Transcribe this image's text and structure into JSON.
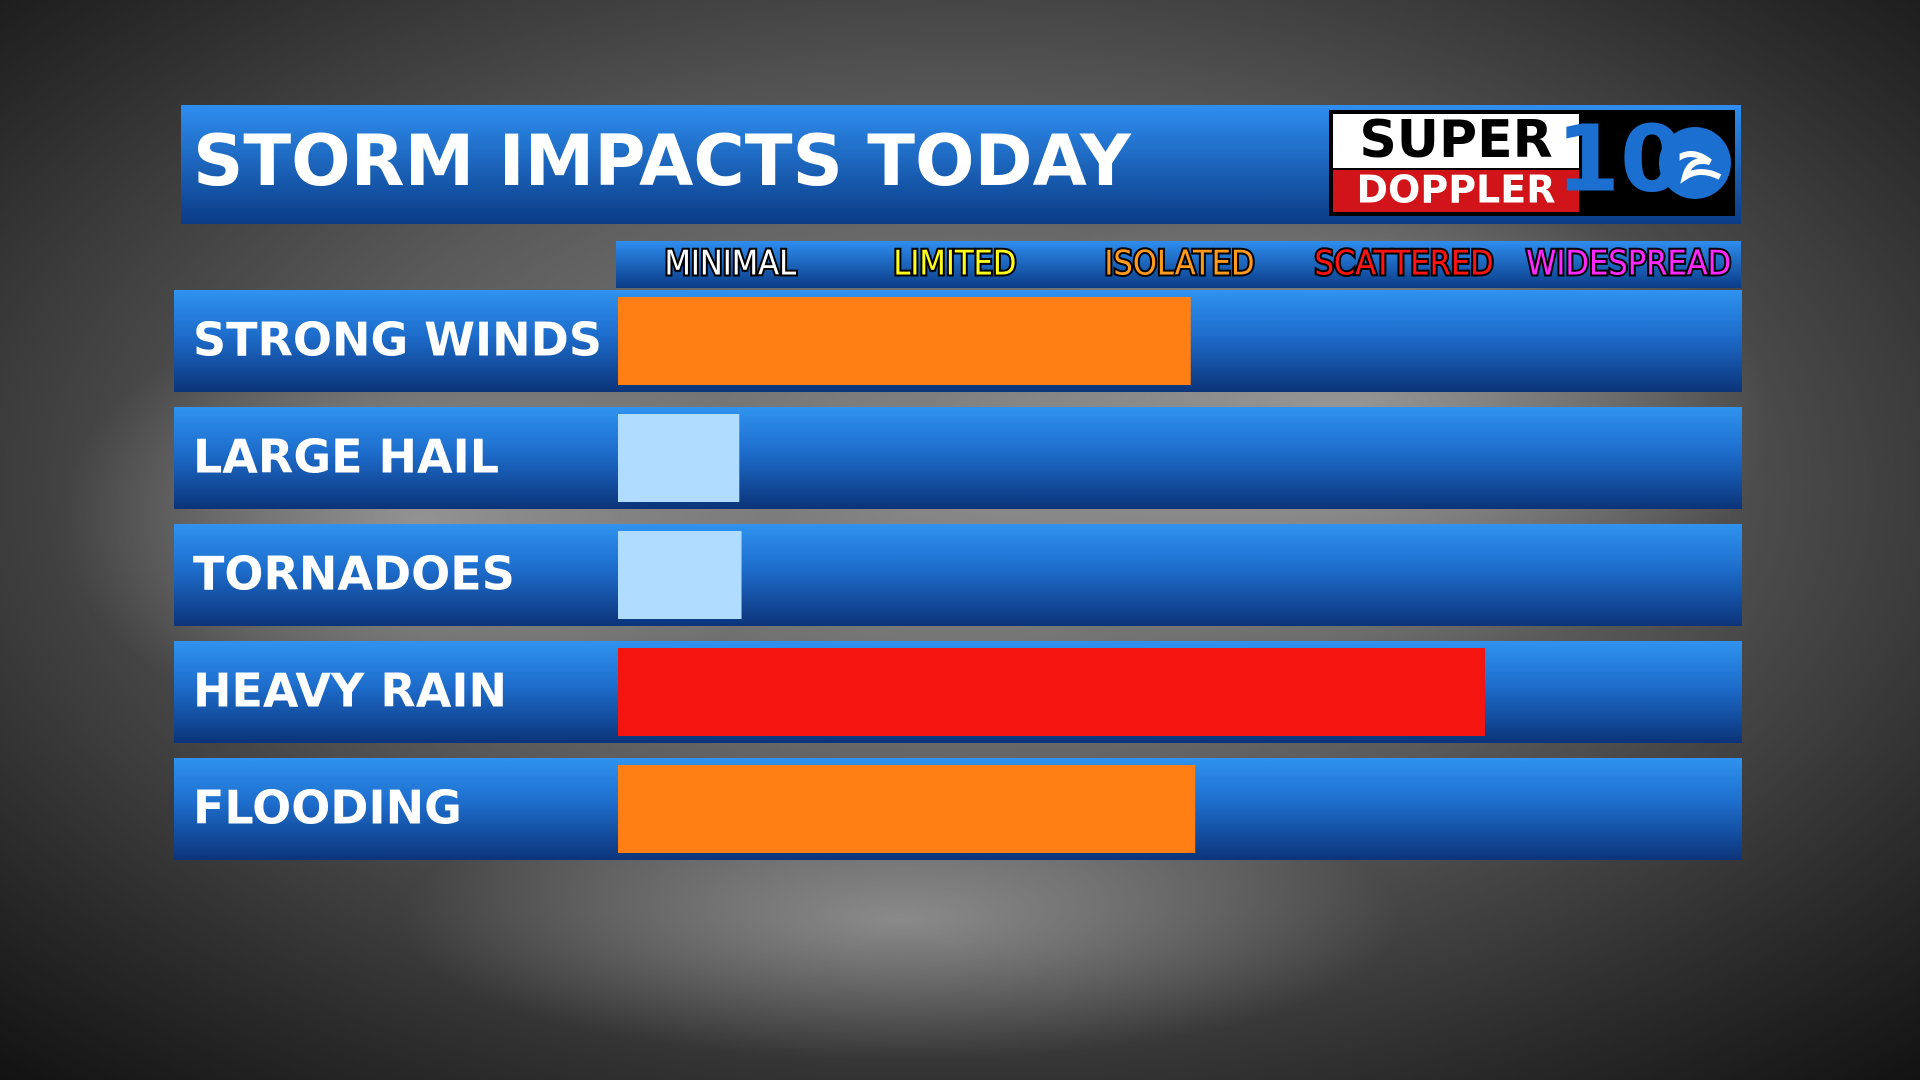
{
  "chart_data": {
    "type": "bar",
    "orientation": "horizontal",
    "title": "STORM IMPACTS TODAY",
    "logo": {
      "top": "SUPER",
      "bottom": "DOPPLER",
      "number": "10"
    },
    "categories": [
      "STRONG WINDS",
      "LARGE HAIL",
      "TORNADOES",
      "HEAVY RAIN",
      "FLOODING"
    ],
    "values": [
      2.55,
      0.54,
      0.55,
      3.86,
      2.57
    ],
    "colors": [
      "#ff7f15",
      "#b0dcff",
      "#b0dcff",
      "#f41410",
      "#ff7f15"
    ],
    "xlim": [
      0,
      5
    ],
    "xticks": [
      {
        "value": 0.5,
        "label": "MINIMAL"
      },
      {
        "value": 1.5,
        "label": "LIMITED"
      },
      {
        "value": 2.5,
        "label": "ISOLATED"
      },
      {
        "value": 3.5,
        "label": "SCATTERED"
      },
      {
        "value": 4.5,
        "label": "WIDESPREAD"
      }
    ],
    "xtick_colors": [
      "#ffffff",
      "#ffff1e",
      "#ff9a1e",
      "#ff1414",
      "#ff28ff"
    ]
  }
}
